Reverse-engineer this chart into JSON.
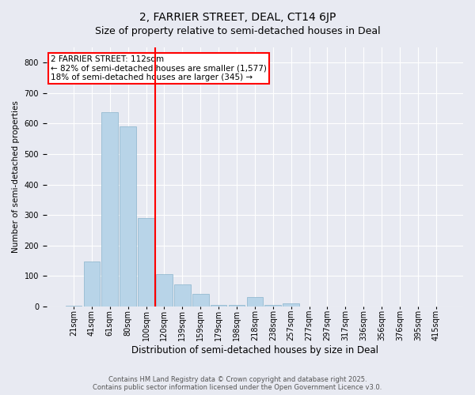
{
  "title": "2, FARRIER STREET, DEAL, CT14 6JP",
  "subtitle": "Size of property relative to semi-detached houses in Deal",
  "xlabel": "Distribution of semi-detached houses by size in Deal",
  "ylabel": "Number of semi-detached properties",
  "categories": [
    "21sqm",
    "41sqm",
    "61sqm",
    "80sqm",
    "100sqm",
    "120sqm",
    "139sqm",
    "159sqm",
    "179sqm",
    "198sqm",
    "218sqm",
    "238sqm",
    "257sqm",
    "277sqm",
    "297sqm",
    "317sqm",
    "336sqm",
    "356sqm",
    "376sqm",
    "395sqm",
    "415sqm"
  ],
  "values": [
    3,
    148,
    637,
    590,
    290,
    105,
    72,
    40,
    5,
    5,
    30,
    5,
    10,
    0,
    0,
    0,
    0,
    0,
    0,
    0,
    0
  ],
  "bar_color": "#b8d4e8",
  "bar_edge_color": "#8ab4cc",
  "vline_index": 4.5,
  "vline_color": "red",
  "annotation_box_text": "2 FARRIER STREET: 112sqm\n← 82% of semi-detached houses are smaller (1,577)\n18% of semi-detached houses are larger (345) →",
  "annotation_box_color": "red",
  "annotation_box_bg": "white",
  "ylim": [
    0,
    850
  ],
  "yticks": [
    0,
    100,
    200,
    300,
    400,
    500,
    600,
    700,
    800
  ],
  "background_color": "#e8eaf2",
  "plot_bg_color": "#e8eaf2",
  "footer_text": "Contains HM Land Registry data © Crown copyright and database right 2025.\nContains public sector information licensed under the Open Government Licence v3.0.",
  "title_fontsize": 10,
  "subtitle_fontsize": 9,
  "xlabel_fontsize": 8.5,
  "ylabel_fontsize": 7.5,
  "tick_fontsize": 7,
  "footer_fontsize": 6,
  "annot_fontsize": 7.5
}
